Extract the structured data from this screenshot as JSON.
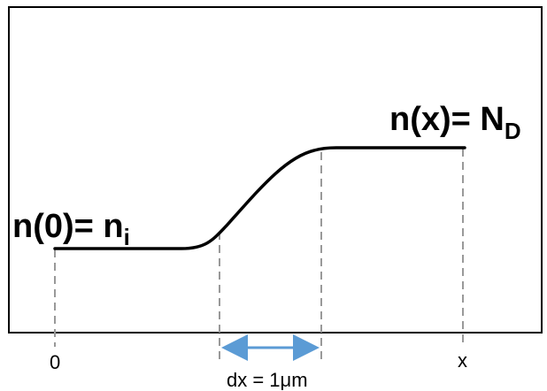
{
  "left_label": {
    "main": "n(0)= n",
    "sub": "i"
  },
  "right_label": {
    "main": "n(x)= N",
    "sub": "D"
  },
  "axis_labels": {
    "origin": "0",
    "end": "x"
  },
  "dx_label": "dx = 1μm",
  "colors": {
    "curve": "#000000",
    "dashed": "#999999",
    "arrow": "#5b9bd5",
    "frame": "#000000"
  }
}
